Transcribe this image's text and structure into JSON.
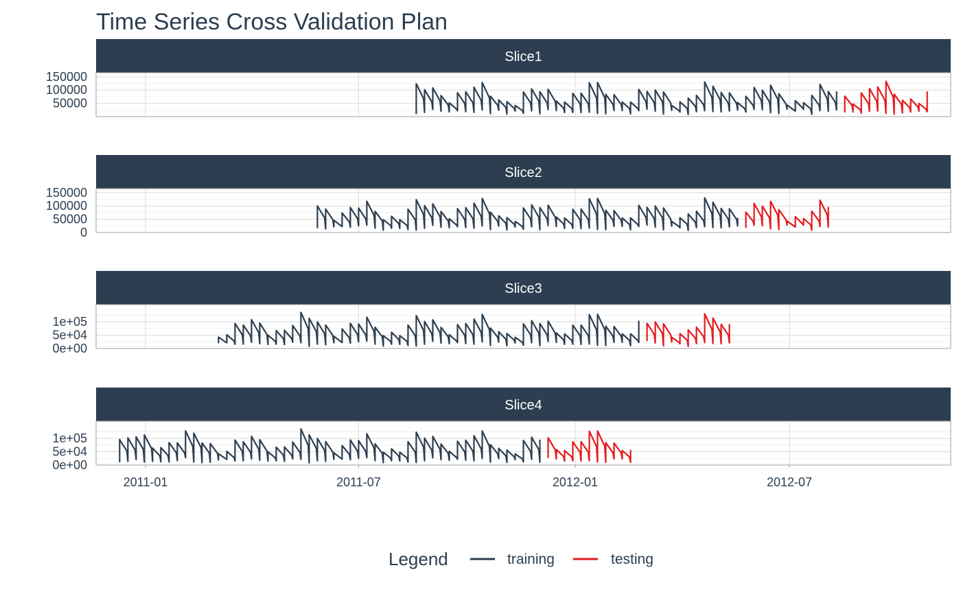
{
  "chart_data": {
    "type": "line",
    "title": "Time Series Cross Validation Plan",
    "xlabel": "",
    "ylabel": "",
    "x_ticks": [
      "2011-01",
      "2011-07",
      "2012-01",
      "2012-07"
    ],
    "legend": {
      "title": "Legend",
      "position": "bottom",
      "entries": [
        {
          "name": "training",
          "color": "#2c3e50"
        },
        {
          "name": "testing",
          "color": "#e31a1c"
        }
      ]
    },
    "grid": true,
    "strip_color": "#2c3e50",
    "weekly_pattern_note_free": true,
    "panels": [
      {
        "label": "Slice1",
        "y_ticks": [
          "50000",
          "100000",
          "150000"
        ],
        "series": [
          {
            "name": "training",
            "start": "2011-08-19",
            "end": "2012-08-10"
          },
          {
            "name": "testing",
            "start": "2012-08-17",
            "end": "2012-10-26"
          }
        ]
      },
      {
        "label": "Slice2",
        "y_ticks": [
          "0",
          "50000",
          "100000",
          "150000"
        ],
        "series": [
          {
            "name": "training",
            "start": "2011-05-27",
            "end": "2012-05-18"
          },
          {
            "name": "testing",
            "start": "2012-05-25",
            "end": "2012-08-03"
          }
        ]
      },
      {
        "label": "Slice3",
        "y_ticks": [
          "0e+00",
          "5e+04",
          "1e+05"
        ],
        "series": [
          {
            "name": "training",
            "start": "2011-03-04",
            "end": "2012-02-24"
          },
          {
            "name": "testing",
            "start": "2012-03-02",
            "end": "2012-05-11"
          }
        ]
      },
      {
        "label": "Slice4",
        "y_ticks": [
          "0e+00",
          "5e+04",
          "1e+05"
        ],
        "series": [
          {
            "name": "training",
            "start": "2010-12-10",
            "end": "2011-12-02"
          },
          {
            "name": "testing",
            "start": "2011-12-09",
            "end": "2012-02-17"
          }
        ]
      }
    ]
  }
}
